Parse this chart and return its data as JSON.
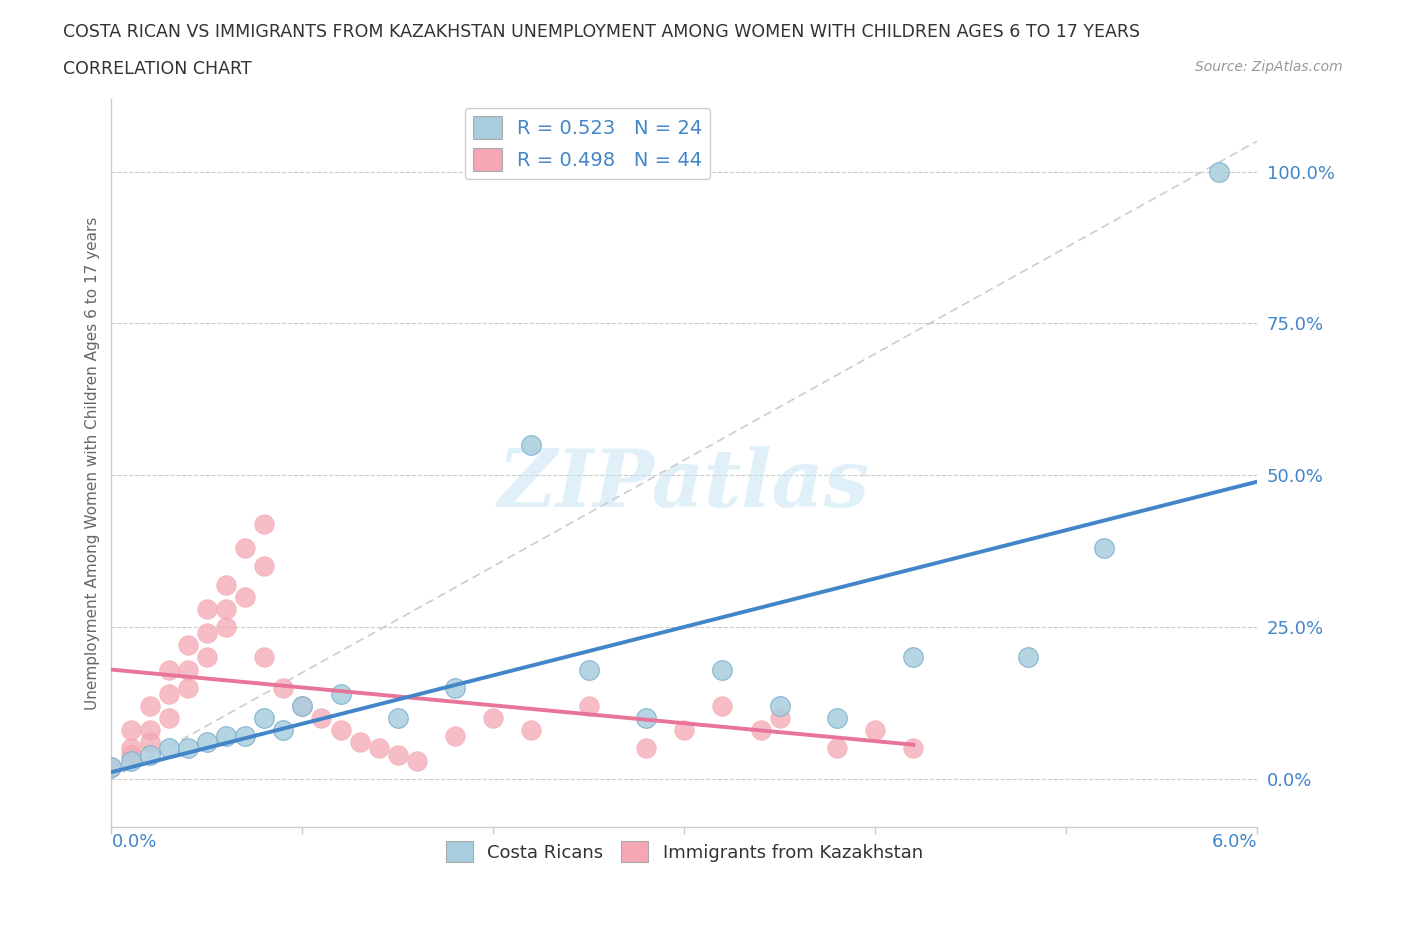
{
  "title_line1": "COSTA RICAN VS IMMIGRANTS FROM KAZAKHSTAN UNEMPLOYMENT AMONG WOMEN WITH CHILDREN AGES 6 TO 17 YEARS",
  "title_line2": "CORRELATION CHART",
  "source": "Source: ZipAtlas.com",
  "ylabel": "Unemployment Among Women with Children Ages 6 to 17 years",
  "right_yticks": [
    "0.0%",
    "25.0%",
    "50.0%",
    "75.0%",
    "100.0%"
  ],
  "right_ytick_vals": [
    0.0,
    0.25,
    0.5,
    0.75,
    1.0
  ],
  "xlim": [
    0.0,
    0.06
  ],
  "ylim": [
    -0.08,
    1.12
  ],
  "legend_blue_label": "R = 0.523   N = 24",
  "legend_pink_label": "R = 0.498   N = 44",
  "legend_bottom_blue": "Costa Ricans",
  "legend_bottom_pink": "Immigrants from Kazakhstan",
  "blue_color": "#A8CEDE",
  "pink_color": "#F4A7B3",
  "blue_line_color": "#4285C8",
  "pink_line_color": "#E8749A",
  "dashed_line_color": "#CCCCCC",
  "watermark": "ZIPatlas",
  "blue_scatter_x": [
    0.0,
    0.001,
    0.002,
    0.003,
    0.004,
    0.005,
    0.006,
    0.007,
    0.008,
    0.009,
    0.01,
    0.012,
    0.015,
    0.018,
    0.022,
    0.025,
    0.028,
    0.032,
    0.035,
    0.038,
    0.042,
    0.048,
    0.052,
    0.058
  ],
  "blue_scatter_y": [
    0.02,
    0.03,
    0.04,
    0.05,
    0.05,
    0.06,
    0.07,
    0.07,
    0.1,
    0.08,
    0.12,
    0.14,
    0.1,
    0.15,
    0.55,
    0.18,
    0.1,
    0.18,
    0.12,
    0.1,
    0.2,
    0.2,
    0.38,
    1.0
  ],
  "pink_scatter_x": [
    0.0,
    0.001,
    0.002,
    0.003,
    0.004,
    0.005,
    0.006,
    0.007,
    0.008,
    0.001,
    0.002,
    0.003,
    0.004,
    0.005,
    0.006,
    0.007,
    0.008,
    0.001,
    0.002,
    0.003,
    0.004,
    0.005,
    0.006,
    0.008,
    0.009,
    0.01,
    0.011,
    0.012,
    0.013,
    0.014,
    0.015,
    0.016,
    0.018,
    0.02,
    0.022,
    0.025,
    0.028,
    0.03,
    0.032,
    0.034,
    0.035,
    0.038,
    0.04,
    0.042
  ],
  "pink_scatter_y": [
    0.02,
    0.05,
    0.08,
    0.1,
    0.15,
    0.2,
    0.25,
    0.3,
    0.35,
    0.08,
    0.12,
    0.18,
    0.22,
    0.28,
    0.32,
    0.38,
    0.42,
    0.04,
    0.06,
    0.14,
    0.18,
    0.24,
    0.28,
    0.2,
    0.15,
    0.12,
    0.1,
    0.08,
    0.06,
    0.05,
    0.04,
    0.03,
    0.07,
    0.1,
    0.08,
    0.12,
    0.05,
    0.08,
    0.12,
    0.08,
    0.1,
    0.05,
    0.08,
    0.05
  ]
}
